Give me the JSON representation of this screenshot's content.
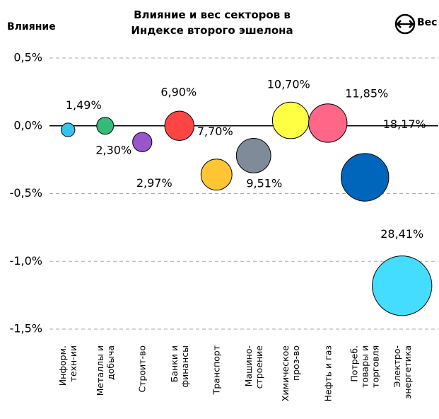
{
  "chart_data": {
    "type": "bubble",
    "title": "Влияние и вес секторов в\nИндексе второго эшелона",
    "y_label": "Влияние",
    "size_label": "Вес",
    "categories": [
      "Информ.\nтехн-ии",
      "Металлы и\nдобыча",
      "Строит-во",
      "Банки и\nфинансы",
      "Транспорт",
      "Машино-\nстроение",
      "Химическое\nпроз-во",
      "Нефть и газ",
      "Потреб.\nтовары и\nторговля",
      "Электро-\nэнергетика"
    ],
    "values": [
      -0.03,
      0.0,
      -0.12,
      0.0,
      -0.36,
      -0.22,
      0.04,
      0.02,
      -0.38,
      -1.18
    ],
    "sizes": [
      1.49,
      2.3,
      2.97,
      6.9,
      7.7,
      9.51,
      10.7,
      11.85,
      18.17,
      28.41
    ],
    "value_labels": [
      "1,49%",
      "2,30%",
      "2,97%",
      "6,90%",
      "7,70%",
      "9,51%",
      "10,70%",
      "11,85%",
      "18,17%",
      "28,41%"
    ],
    "colors": [
      "#33c3ee",
      "#33bb77",
      "#9955cc",
      "#ff4444",
      "#ffc533",
      "#7f8b99",
      "#ffff44",
      "#ff6688",
      "#0066bb",
      "#44ddff"
    ],
    "ylim": [
      -1.5,
      0.5
    ],
    "yticks": [
      {
        "value": 0.5,
        "label": "0,5%"
      },
      {
        "value": 0,
        "label": "0,0%"
      },
      {
        "value": -0.5,
        "label": "-0,5%"
      },
      {
        "value": -1.0,
        "label": "-1,0%"
      },
      {
        "value": -1.5,
        "label": "-1,5%"
      }
    ],
    "grid": true
  }
}
